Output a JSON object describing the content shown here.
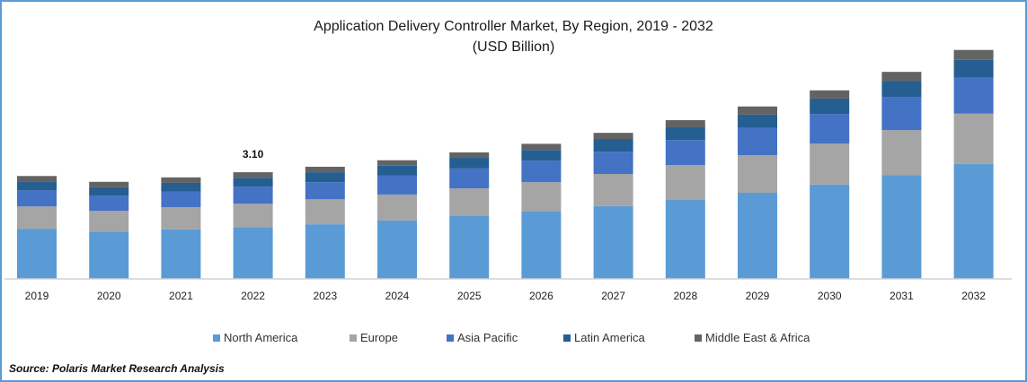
{
  "chart_data": {
    "type": "bar",
    "stacked": true,
    "title": "Application Delivery Controller Market, By Region, 2019 - 2032",
    "subtitle": "(USD Billion)",
    "xlabel": "",
    "ylabel": "",
    "ylim": [
      0,
      7
    ],
    "grid": false,
    "legend_position": "bottom",
    "categories": [
      "2019",
      "2020",
      "2021",
      "2022",
      "2023",
      "2024",
      "2025",
      "2026",
      "2027",
      "2028",
      "2029",
      "2030",
      "2031",
      "2032"
    ],
    "series": [
      {
        "name": "North America",
        "color": "#5b9bd5",
        "values": [
          1.45,
          1.37,
          1.43,
          1.5,
          1.58,
          1.69,
          1.82,
          1.95,
          2.11,
          2.29,
          2.5,
          2.74,
          3.02,
          3.34
        ]
      },
      {
        "name": "Europe",
        "color": "#a5a5a5",
        "values": [
          0.65,
          0.6,
          0.65,
          0.68,
          0.73,
          0.76,
          0.81,
          0.86,
          0.94,
          1.02,
          1.1,
          1.2,
          1.31,
          1.47
        ]
      },
      {
        "name": "Asia Pacific",
        "color": "#4472c4",
        "values": [
          0.47,
          0.45,
          0.45,
          0.5,
          0.5,
          0.55,
          0.58,
          0.63,
          0.65,
          0.73,
          0.79,
          0.86,
          0.97,
          1.05
        ]
      },
      {
        "name": "Latin America",
        "color": "#255e91",
        "values": [
          0.26,
          0.24,
          0.26,
          0.26,
          0.29,
          0.29,
          0.31,
          0.31,
          0.37,
          0.37,
          0.39,
          0.45,
          0.47,
          0.52
        ]
      },
      {
        "name": "Middle East & Africa",
        "color": "#636363",
        "values": [
          0.16,
          0.16,
          0.16,
          0.16,
          0.16,
          0.16,
          0.16,
          0.18,
          0.18,
          0.21,
          0.24,
          0.24,
          0.26,
          0.29
        ]
      }
    ],
    "annotations": [
      {
        "category": "2022",
        "label": "3.10"
      }
    ]
  },
  "source": "Source: Polaris  Market Research Analysis"
}
